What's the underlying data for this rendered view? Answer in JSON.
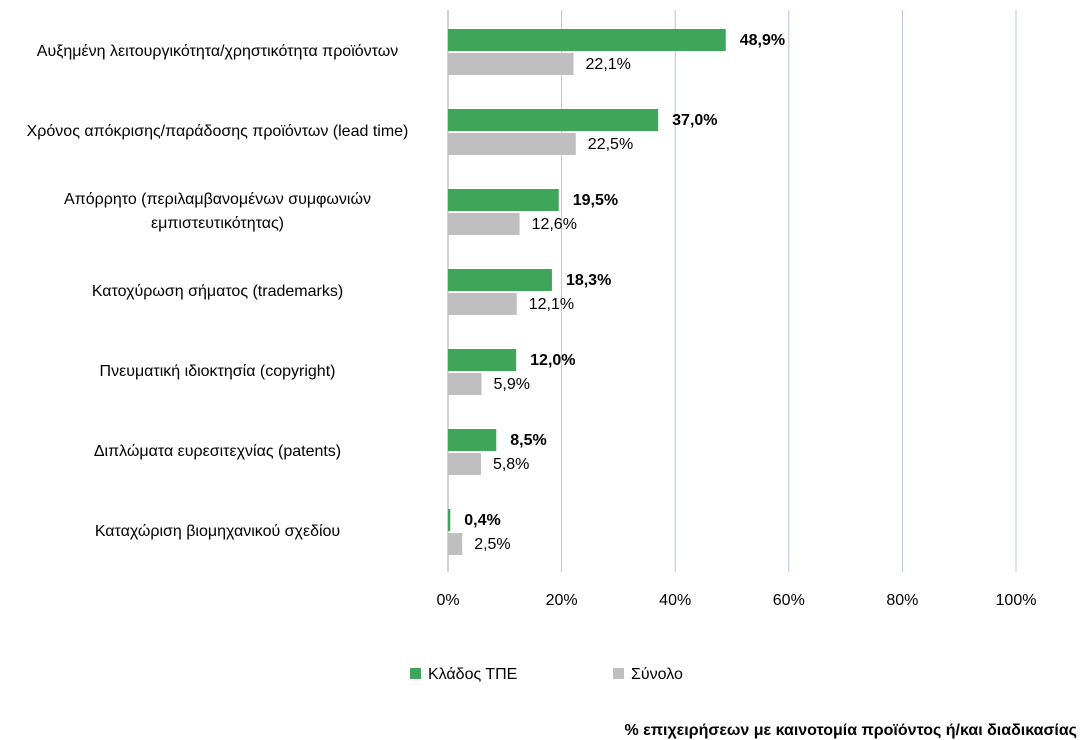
{
  "chart_data": {
    "type": "bar",
    "orientation": "horizontal",
    "categories": [
      "Αυξημένη λειτουργικότητα/χρηστικότητα προϊόντων",
      "Χρόνος απόκρισης/παράδοσης προϊόντων (lead time)",
      "Απόρρητο (περιλαμβανομένων συμφωνιών εμπιστευτικότητας)",
      "Κατοχύρωση σήματος (trademarks)",
      "Πνευματική ιδιοκτησία (copyright)",
      "Διπλώματα ευρεσιτεχνίας (patents)",
      "Καταχώριση βιομηχανικού σχεδίου"
    ],
    "series": [
      {
        "name": "Κλάδος ΤΠΕ",
        "color": "#3fa55a",
        "values": [
          48.9,
          37.0,
          19.5,
          18.3,
          12.0,
          8.5,
          0.4
        ],
        "value_labels": [
          "48,9%",
          "37,0%",
          "19,5%",
          "18,3%",
          "12,0%",
          "8,5%",
          "0,4%"
        ]
      },
      {
        "name": "Σύνολο",
        "color": "#bfbfbf",
        "values": [
          22.1,
          22.5,
          12.6,
          12.1,
          5.9,
          5.8,
          2.5
        ],
        "value_labels": [
          "22,1%",
          "22,5%",
          "12,6%",
          "12,1%",
          "5,9%",
          "5,8%",
          "2,5%"
        ]
      }
    ],
    "xlim": [
      0,
      100
    ],
    "xticks": [
      {
        "value": 0,
        "label": "0%"
      },
      {
        "value": 20,
        "label": "20%"
      },
      {
        "value": 40,
        "label": "40%"
      },
      {
        "value": 60,
        "label": "60%"
      },
      {
        "value": 80,
        "label": "80%"
      },
      {
        "value": 100,
        "label": "100%"
      }
    ],
    "x_label": "% επιχειρήσεων με καινοτομία προϊόντος ή/και διαδικασίας",
    "grid": true,
    "grid_color": "#b4c7e7",
    "legend": "bottom"
  }
}
